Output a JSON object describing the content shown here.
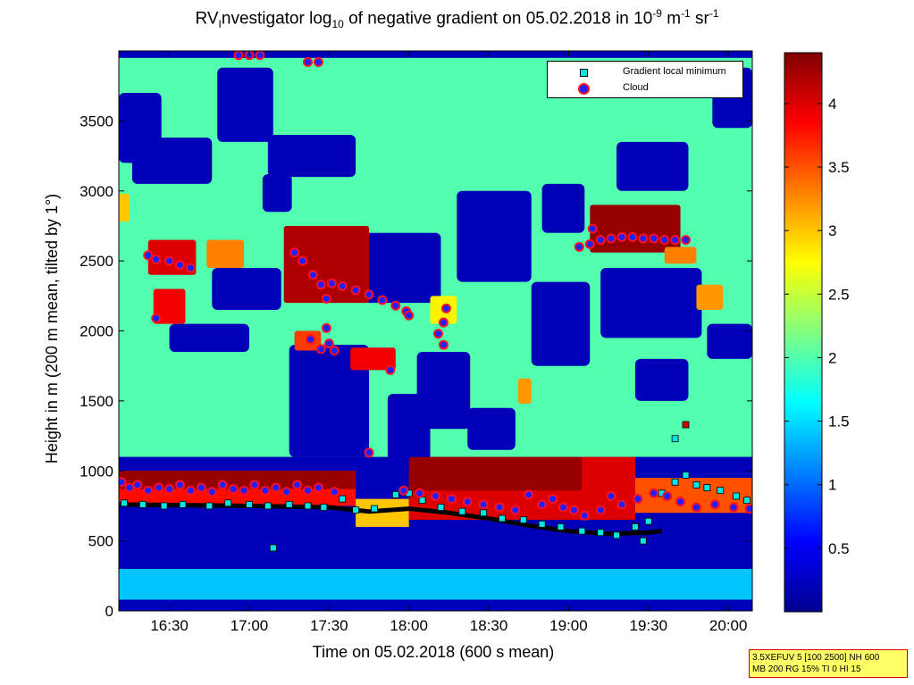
{
  "title": {
    "prefix": "RV",
    "prefix_sub": "I",
    "part1": "nvestigator log",
    "sub1": "10",
    "part2": " of negative gradient on 05.02.2018 in 10",
    "sup1": "-9",
    "part3": " m",
    "sup2": "-1",
    "part4": " sr",
    "sup3": "-1"
  },
  "xlabel": "Time on 05.02.2018 (600 s mean)",
  "ylabel": "Height in m (200 m mean, tilted by 1°)",
  "settings": {
    "line1": "3.5XEFUV 5 [100 2500] NH 600",
    "line2": "MB 200 RG 15% TI 0 HI 15"
  },
  "legend": {
    "gradient_label": "Gradient local minimum",
    "cloud_label": "Cloud"
  },
  "chart_data": {
    "type": "heatmap",
    "x_unit": "time of day",
    "xlim": [
      "16:11",
      "20:09"
    ],
    "x_ticks": [
      "16:30",
      "17:00",
      "17:30",
      "18:00",
      "18:30",
      "19:00",
      "19:30",
      "20:00"
    ],
    "ylim": [
      0,
      4000
    ],
    "y_ticks": [
      0,
      500,
      1000,
      1500,
      2000,
      2500,
      3000,
      3500
    ],
    "colorbar": {
      "range": [
        0,
        4.4
      ],
      "ticks": [
        0.5,
        1,
        1.5,
        2,
        2.5,
        3,
        3.5,
        4
      ],
      "colormap": "jet"
    },
    "colormap_stops": [
      "#00008f",
      "#0000ff",
      "#0080ff",
      "#00ffff",
      "#80ff80",
      "#ffff00",
      "#ff8000",
      "#ff0000",
      "#800000"
    ],
    "background_value": 0.2,
    "layers": [
      {
        "name": "surface layer",
        "t0": "16:11",
        "t1": "20:09",
        "h0": 80,
        "h1": 300,
        "value": 1.4
      },
      {
        "name": "mixing layer",
        "t0": "16:11",
        "t1": "17:40",
        "h0": 750,
        "h1": 1000,
        "value": 3.8
      },
      {
        "name": "mixing layer",
        "t0": "17:40",
        "t1": "18:00",
        "h0": 600,
        "h1": 800,
        "value": 3.0
      },
      {
        "name": "mixing layer",
        "t0": "18:00",
        "t1": "19:25",
        "h0": 650,
        "h1": 1100,
        "value": 4.0
      },
      {
        "name": "mixing layer",
        "t0": "19:25",
        "t1": "20:09",
        "h0": 700,
        "h1": 950,
        "value": 3.5
      },
      {
        "name": "upper layer",
        "t0": "16:11",
        "t1": "20:09",
        "h0": 1100,
        "h1": 3950,
        "value": 2.0
      }
    ],
    "patches": [
      {
        "t0": "16:11",
        "t1": "16:15",
        "h0": 2780,
        "h1": 2980,
        "value": 3.0
      },
      {
        "t0": "16:22",
        "t1": "16:40",
        "h0": 2400,
        "h1": 2650,
        "value": 4.0
      },
      {
        "t0": "16:24",
        "t1": "16:36",
        "h0": 2050,
        "h1": 2300,
        "value": 3.9
      },
      {
        "t0": "16:44",
        "t1": "16:58",
        "h0": 2450,
        "h1": 2650,
        "value": 3.3
      },
      {
        "t0": "17:13",
        "t1": "17:45",
        "h0": 2200,
        "h1": 2750,
        "value": 4.2
      },
      {
        "t0": "17:17",
        "t1": "17:27",
        "h0": 1860,
        "h1": 2000,
        "value": 3.6
      },
      {
        "t0": "17:38",
        "t1": "17:55",
        "h0": 1720,
        "h1": 1880,
        "value": 3.9
      },
      {
        "t0": "18:08",
        "t1": "18:18",
        "h0": 2050,
        "h1": 2250,
        "value": 2.8
      },
      {
        "t0": "18:41",
        "t1": "18:46",
        "h0": 1480,
        "h1": 1660,
        "value": 3.2
      },
      {
        "t0": "19:08",
        "t1": "19:42",
        "h0": 2560,
        "h1": 2900,
        "value": 4.3
      },
      {
        "t0": "19:36",
        "t1": "19:48",
        "h0": 2480,
        "h1": 2600,
        "value": 3.3
      },
      {
        "t0": "19:48",
        "t1": "19:58",
        "h0": 2150,
        "h1": 2330,
        "value": 3.2
      },
      {
        "t0": "16:11",
        "t1": "17:40",
        "h0": 870,
        "h1": 1000,
        "value": 4.3
      },
      {
        "t0": "18:00",
        "t1": "19:05",
        "h0": 860,
        "h1": 1100,
        "value": 4.3
      }
    ],
    "holes": [
      {
        "t0": "16:11",
        "t1": "16:27",
        "h0": 3200,
        "h1": 3700
      },
      {
        "t0": "16:16",
        "t1": "16:46",
        "h0": 3050,
        "h1": 3380
      },
      {
        "t0": "16:48",
        "t1": "17:09",
        "h0": 3350,
        "h1": 3880
      },
      {
        "t0": "17:07",
        "t1": "17:40",
        "h0": 3100,
        "h1": 3400
      },
      {
        "t0": "17:05",
        "t1": "17:16",
        "h0": 2850,
        "h1": 3120
      },
      {
        "t0": "16:46",
        "t1": "17:12",
        "h0": 2150,
        "h1": 2450
      },
      {
        "t0": "16:30",
        "t1": "17:00",
        "h0": 1850,
        "h1": 2050
      },
      {
        "t0": "17:15",
        "t1": "17:45",
        "h0": 1100,
        "h1": 1900
      },
      {
        "t0": "17:43",
        "t1": "18:12",
        "h0": 2200,
        "h1": 2700
      },
      {
        "t0": "17:52",
        "t1": "18:08",
        "h0": 1000,
        "h1": 1550
      },
      {
        "t0": "18:03",
        "t1": "18:23",
        "h0": 1300,
        "h1": 1850
      },
      {
        "t0": "18:18",
        "t1": "18:46",
        "h0": 2350,
        "h1": 3000
      },
      {
        "t0": "18:46",
        "t1": "19:08",
        "h0": 1750,
        "h1": 2350
      },
      {
        "t0": "18:50",
        "t1": "19:06",
        "h0": 2700,
        "h1": 3050
      },
      {
        "t0": "19:12",
        "t1": "19:50",
        "h0": 1950,
        "h1": 2450
      },
      {
        "t0": "19:18",
        "t1": "19:45",
        "h0": 3000,
        "h1": 3350
      },
      {
        "t0": "19:52",
        "t1": "20:09",
        "h0": 1800,
        "h1": 2050
      },
      {
        "t0": "19:54",
        "t1": "20:09",
        "h0": 3450,
        "h1": 3880
      },
      {
        "t0": "19:25",
        "t1": "19:45",
        "h0": 1500,
        "h1": 1800
      },
      {
        "t0": "18:22",
        "t1": "18:40",
        "h0": 1150,
        "h1": 1450
      }
    ],
    "series": [
      {
        "name": "Gradient local minimum",
        "marker": "square",
        "color": "#00e5e5",
        "points": [
          {
            "t": "16:13",
            "h": 770
          },
          {
            "t": "16:20",
            "h": 760
          },
          {
            "t": "16:28",
            "h": 750
          },
          {
            "t": "16:35",
            "h": 760
          },
          {
            "t": "16:45",
            "h": 750
          },
          {
            "t": "16:52",
            "h": 770
          },
          {
            "t": "17:00",
            "h": 760
          },
          {
            "t": "17:07",
            "h": 750
          },
          {
            "t": "17:15",
            "h": 760
          },
          {
            "t": "17:22",
            "h": 750
          },
          {
            "t": "17:28",
            "h": 740
          },
          {
            "t": "17:35",
            "h": 800
          },
          {
            "t": "17:40",
            "h": 720
          },
          {
            "t": "17:47",
            "h": 730
          },
          {
            "t": "17:55",
            "h": 830
          },
          {
            "t": "18:00",
            "h": 840
          },
          {
            "t": "18:05",
            "h": 790
          },
          {
            "t": "18:12",
            "h": 740
          },
          {
            "t": "18:20",
            "h": 710
          },
          {
            "t": "18:28",
            "h": 700
          },
          {
            "t": "18:35",
            "h": 660
          },
          {
            "t": "18:43",
            "h": 650
          },
          {
            "t": "18:50",
            "h": 620
          },
          {
            "t": "18:57",
            "h": 600
          },
          {
            "t": "19:05",
            "h": 570
          },
          {
            "t": "19:12",
            "h": 560
          },
          {
            "t": "19:18",
            "h": 540
          },
          {
            "t": "19:25",
            "h": 600
          },
          {
            "t": "19:30",
            "h": 640
          },
          {
            "t": "19:35",
            "h": 840
          },
          {
            "t": "19:40",
            "h": 920
          },
          {
            "t": "19:44",
            "h": 970
          },
          {
            "t": "19:48",
            "h": 900
          },
          {
            "t": "19:52",
            "h": 880
          },
          {
            "t": "19:57",
            "h": 860
          },
          {
            "t": "20:03",
            "h": 820
          },
          {
            "t": "20:07",
            "h": 790
          },
          {
            "t": "17:09",
            "h": 450
          },
          {
            "t": "19:28",
            "h": 500
          },
          {
            "t": "19:40",
            "h": 1230
          }
        ]
      },
      {
        "name": "Cloud",
        "marker": "circle",
        "color": "#2020ff",
        "edge_color": "#ff1020",
        "points": [
          {
            "t": "16:12",
            "h": 920
          },
          {
            "t": "16:15",
            "h": 880
          },
          {
            "t": "16:18",
            "h": 900
          },
          {
            "t": "16:22",
            "h": 860
          },
          {
            "t": "16:26",
            "h": 880
          },
          {
            "t": "16:30",
            "h": 870
          },
          {
            "t": "16:34",
            "h": 900
          },
          {
            "t": "16:38",
            "h": 860
          },
          {
            "t": "16:42",
            "h": 880
          },
          {
            "t": "16:46",
            "h": 850
          },
          {
            "t": "16:50",
            "h": 900
          },
          {
            "t": "16:54",
            "h": 870
          },
          {
            "t": "16:58",
            "h": 860
          },
          {
            "t": "17:02",
            "h": 900
          },
          {
            "t": "17:06",
            "h": 860
          },
          {
            "t": "17:10",
            "h": 880
          },
          {
            "t": "17:14",
            "h": 850
          },
          {
            "t": "17:18",
            "h": 900
          },
          {
            "t": "17:22",
            "h": 860
          },
          {
            "t": "17:26",
            "h": 880
          },
          {
            "t": "17:32",
            "h": 850
          },
          {
            "t": "17:45",
            "h": 1130
          },
          {
            "t": "17:58",
            "h": 860
          },
          {
            "t": "18:04",
            "h": 840
          },
          {
            "t": "18:10",
            "h": 820
          },
          {
            "t": "18:16",
            "h": 800
          },
          {
            "t": "18:22",
            "h": 780
          },
          {
            "t": "18:28",
            "h": 760
          },
          {
            "t": "18:34",
            "h": 740
          },
          {
            "t": "18:40",
            "h": 720
          },
          {
            "t": "18:45",
            "h": 830
          },
          {
            "t": "18:50",
            "h": 760
          },
          {
            "t": "18:54",
            "h": 800
          },
          {
            "t": "18:58",
            "h": 740
          },
          {
            "t": "19:02",
            "h": 720
          },
          {
            "t": "19:06",
            "h": 680
          },
          {
            "t": "19:12",
            "h": 720
          },
          {
            "t": "19:16",
            "h": 820
          },
          {
            "t": "19:20",
            "h": 760
          },
          {
            "t": "19:26",
            "h": 800
          },
          {
            "t": "19:32",
            "h": 840
          },
          {
            "t": "19:37",
            "h": 820
          },
          {
            "t": "19:42",
            "h": 780
          },
          {
            "t": "19:48",
            "h": 740
          },
          {
            "t": "19:55",
            "h": 760
          },
          {
            "t": "20:02",
            "h": 740
          },
          {
            "t": "20:08",
            "h": 730
          },
          {
            "t": "16:22",
            "h": 2540
          },
          {
            "t": "16:25",
            "h": 2510
          },
          {
            "t": "16:30",
            "h": 2500
          },
          {
            "t": "16:34",
            "h": 2470
          },
          {
            "t": "16:38",
            "h": 2450
          },
          {
            "t": "16:25",
            "h": 2090
          },
          {
            "t": "16:56",
            "h": 3970
          },
          {
            "t": "17:00",
            "h": 3970
          },
          {
            "t": "17:04",
            "h": 3970
          },
          {
            "t": "17:22",
            "h": 3920
          },
          {
            "t": "17:26",
            "h": 3920
          },
          {
            "t": "17:17",
            "h": 2560
          },
          {
            "t": "17:20",
            "h": 2500
          },
          {
            "t": "17:24",
            "h": 2400
          },
          {
            "t": "17:27",
            "h": 2330
          },
          {
            "t": "17:31",
            "h": 2340
          },
          {
            "t": "17:35",
            "h": 2320
          },
          {
            "t": "17:40",
            "h": 2290
          },
          {
            "t": "17:45",
            "h": 2260
          },
          {
            "t": "17:50",
            "h": 2220
          },
          {
            "t": "17:55",
            "h": 2180
          },
          {
            "t": "17:59",
            "h": 2140
          },
          {
            "t": "18:00",
            "h": 2110
          },
          {
            "t": "17:29",
            "h": 2230
          },
          {
            "t": "17:29",
            "h": 2020
          },
          {
            "t": "17:30",
            "h": 1910
          },
          {
            "t": "17:23",
            "h": 1940
          },
          {
            "t": "17:27",
            "h": 1870
          },
          {
            "t": "17:32",
            "h": 1860
          },
          {
            "t": "17:53",
            "h": 1720
          },
          {
            "t": "18:14",
            "h": 2160
          },
          {
            "t": "18:13",
            "h": 2060
          },
          {
            "t": "18:11",
            "h": 1980
          },
          {
            "t": "18:13",
            "h": 1900
          },
          {
            "t": "19:04",
            "h": 2600
          },
          {
            "t": "19:08",
            "h": 2620
          },
          {
            "t": "19:12",
            "h": 2650
          },
          {
            "t": "19:16",
            "h": 2660
          },
          {
            "t": "19:20",
            "h": 2670
          },
          {
            "t": "19:24",
            "h": 2670
          },
          {
            "t": "19:28",
            "h": 2660
          },
          {
            "t": "19:32",
            "h": 2660
          },
          {
            "t": "19:36",
            "h": 2650
          },
          {
            "t": "19:40",
            "h": 2650
          },
          {
            "t": "19:44",
            "h": 2650
          },
          {
            "t": "19:09",
            "h": 2730
          }
        ]
      }
    ],
    "mixing_layer_height_trace": {
      "color": "#000000",
      "points": [
        {
          "t": "16:11",
          "h": 760
        },
        {
          "t": "17:00",
          "h": 750
        },
        {
          "t": "17:30",
          "h": 740
        },
        {
          "t": "17:45",
          "h": 710
        },
        {
          "t": "18:00",
          "h": 730
        },
        {
          "t": "18:15",
          "h": 700
        },
        {
          "t": "18:30",
          "h": 660
        },
        {
          "t": "18:45",
          "h": 610
        },
        {
          "t": "19:00",
          "h": 570
        },
        {
          "t": "19:15",
          "h": 550
        },
        {
          "t": "19:30",
          "h": 560
        },
        {
          "t": "19:35",
          "h": 570
        }
      ]
    },
    "extra_markers": [
      {
        "t": "19:44",
        "h": 1330,
        "color": "#d40000"
      }
    ]
  }
}
